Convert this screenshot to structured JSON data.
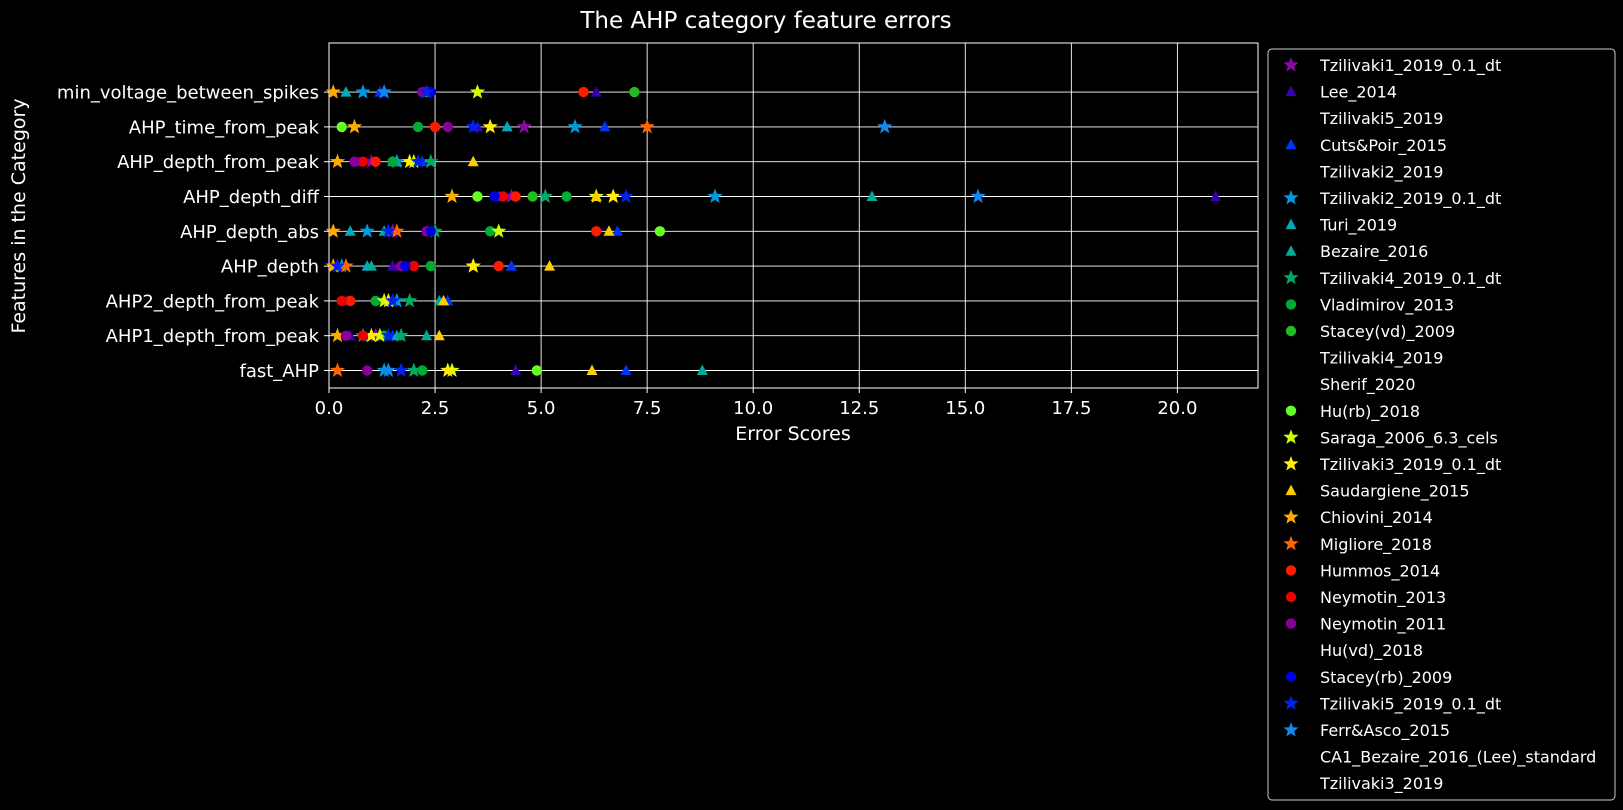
{
  "chart_data": {
    "type": "scatter",
    "title": "The AHP category feature errors",
    "xlabel": "Error Scores",
    "ylabel": "Features in the Category",
    "xlim": [
      0,
      21.9
    ],
    "xticks": [
      0.0,
      2.5,
      5.0,
      7.5,
      10.0,
      12.5,
      15.0,
      17.5,
      20.0
    ],
    "xtick_labels": [
      "0.0",
      "2.5",
      "5.0",
      "7.5",
      "10.0",
      "12.5",
      "15.0",
      "17.5",
      "20.0"
    ],
    "grid": true,
    "legend_position": "outside-right",
    "background": "#000000",
    "foreground": "#ffffff",
    "categories": [
      "fast_AHP",
      "AHP1_depth_from_peak",
      "AHP2_depth_from_peak",
      "AHP_depth",
      "AHP_depth_abs",
      "AHP_depth_diff",
      "AHP_depth_from_peak",
      "AHP_time_from_peak",
      "min_voltage_between_spikes"
    ],
    "series": [
      {
        "name": "Tzilivaki1_2019_0.1_dt",
        "marker": "star",
        "color": "#8b0aa5",
        "values": [
          null,
          1.1,
          1.3,
          0.4,
          1.5,
          4.3,
          1.0,
          4.6,
          1.3
        ]
      },
      {
        "name": "Lee_2014",
        "marker": "triangle",
        "color": "#3a00b0",
        "values": [
          4.4,
          0.5,
          0.4,
          1.5,
          2.3,
          20.9,
          0.7,
          3.5,
          6.3
        ]
      },
      {
        "name": "Tzilivaki5_2019",
        "marker": "none",
        "color": "#000000",
        "values": [
          null,
          null,
          null,
          null,
          null,
          null,
          null,
          null,
          null
        ]
      },
      {
        "name": "Cuts&Poir_2015",
        "marker": "triangle",
        "color": "#0033ff",
        "values": [
          7.0,
          1.5,
          2.8,
          4.3,
          6.8,
          4.0,
          2.2,
          6.5,
          1.2
        ]
      },
      {
        "name": "Tzilivaki2_2019",
        "marker": "none",
        "color": "#000000",
        "values": [
          null,
          null,
          null,
          null,
          null,
          null,
          null,
          null,
          null
        ]
      },
      {
        "name": "Tzilivaki2_2019_0.1_dt",
        "marker": "star",
        "color": "#0099dd",
        "values": [
          1.3,
          0.8,
          1.6,
          0.3,
          0.9,
          9.1,
          1.6,
          5.8,
          0.8
        ]
      },
      {
        "name": "Turi_2019",
        "marker": "triangle",
        "color": "#00aabb",
        "values": [
          null,
          1.6,
          1.5,
          0.9,
          0.5,
          null,
          1.6,
          4.2,
          0.4
        ]
      },
      {
        "name": "Bezaire_2016",
        "marker": "triangle",
        "color": "#00aa99",
        "values": [
          8.8,
          2.3,
          2.6,
          1.0,
          1.3,
          12.8,
          1.5,
          null,
          null
        ]
      },
      {
        "name": "Tzilivaki4_2019_0.1_dt",
        "marker": "star",
        "color": "#00aa66",
        "values": [
          2.0,
          1.7,
          1.9,
          null,
          2.5,
          5.1,
          2.4,
          null,
          null
        ]
      },
      {
        "name": "Vladimirov_2013",
        "marker": "circle",
        "color": "#00aa33",
        "values": [
          2.2,
          1.3,
          1.1,
          2.4,
          3.8,
          5.6,
          1.5,
          2.1,
          2.3
        ]
      },
      {
        "name": "Stacey(vd)_2009",
        "marker": "circle",
        "color": "#22bb22",
        "values": [
          null,
          null,
          null,
          null,
          null,
          4.8,
          null,
          null,
          7.2
        ]
      },
      {
        "name": "Tzilivaki4_2019",
        "marker": "none",
        "color": "#000000",
        "values": [
          null,
          null,
          null,
          null,
          null,
          null,
          null,
          null,
          null
        ]
      },
      {
        "name": "Sherif_2020",
        "marker": "none",
        "color": "#000000",
        "values": [
          null,
          null,
          null,
          null,
          null,
          null,
          null,
          null,
          null
        ]
      },
      {
        "name": "Hu(rb)_2018",
        "marker": "circle",
        "color": "#66ff22",
        "values": [
          4.9,
          null,
          null,
          null,
          7.8,
          3.5,
          null,
          0.3,
          null
        ]
      },
      {
        "name": "Saraga_2006_6.3_cels",
        "marker": "star",
        "color": "#ccff00",
        "values": [
          2.9,
          1.2,
          1.3,
          3.4,
          4.0,
          6.3,
          2.0,
          null,
          3.5
        ]
      },
      {
        "name": "Tzilivaki3_2019_0.1_dt",
        "marker": "star",
        "color": "#ffee00",
        "values": [
          2.8,
          1.0,
          1.4,
          3.4,
          null,
          6.7,
          1.9,
          3.8,
          null
        ]
      },
      {
        "name": "Saudargiene_2015",
        "marker": "triangle",
        "color": "#ffcc00",
        "values": [
          6.2,
          2.6,
          2.7,
          5.2,
          6.6,
          6.3,
          3.4,
          null,
          null
        ]
      },
      {
        "name": "Chiovini_2014",
        "marker": "star",
        "color": "#ffaa00",
        "values": [
          null,
          0.2,
          null,
          0.1,
          0.1,
          2.9,
          0.2,
          0.6,
          0.1
        ]
      },
      {
        "name": "Migliore_2018",
        "marker": "star",
        "color": "#ff6600",
        "values": [
          0.2,
          null,
          null,
          0.4,
          1.6,
          null,
          null,
          7.5,
          null
        ]
      },
      {
        "name": "Hummos_2014",
        "marker": "circle",
        "color": "#ff1a00",
        "values": [
          null,
          null,
          0.5,
          4.0,
          6.3,
          4.4,
          1.1,
          2.5,
          6.0
        ]
      },
      {
        "name": "Neymotin_2013",
        "marker": "circle",
        "color": "#ee0000",
        "values": [
          null,
          0.8,
          0.3,
          2.0,
          null,
          4.1,
          0.8,
          null,
          null
        ]
      },
      {
        "name": "Neymotin_2011",
        "marker": "circle",
        "color": "#880099",
        "values": [
          0.9,
          0.4,
          null,
          1.7,
          2.3,
          null,
          0.6,
          2.8,
          2.2
        ]
      },
      {
        "name": "Hu(vd)_2018",
        "marker": "none",
        "color": "#000000",
        "values": [
          null,
          null,
          null,
          null,
          null,
          null,
          null,
          null,
          null
        ]
      },
      {
        "name": "Stacey(rb)_2009",
        "marker": "circle",
        "color": "#0000dd",
        "values": [
          null,
          null,
          null,
          1.8,
          2.4,
          3.9,
          null,
          null,
          2.4
        ]
      },
      {
        "name": "Tzilivaki5_2019_0.1_dt",
        "marker": "star",
        "color": "#0022ee",
        "values": [
          1.7,
          1.4,
          1.5,
          0.2,
          1.4,
          7.0,
          2.1,
          3.4,
          2.3
        ]
      },
      {
        "name": "Ferr&Asco_2015",
        "marker": "star",
        "color": "#1188ee",
        "values": [
          1.4,
          null,
          null,
          null,
          null,
          15.3,
          null,
          13.1,
          1.3
        ]
      },
      {
        "name": "CA1_Bezaire_2016_(Lee)_standard",
        "marker": "none",
        "color": "#000000",
        "values": [
          null,
          null,
          null,
          null,
          null,
          null,
          null,
          null,
          null
        ]
      },
      {
        "name": "Tzilivaki3_2019",
        "marker": "none",
        "color": "#000000",
        "values": [
          null,
          null,
          null,
          null,
          null,
          null,
          null,
          null,
          null
        ]
      }
    ]
  }
}
